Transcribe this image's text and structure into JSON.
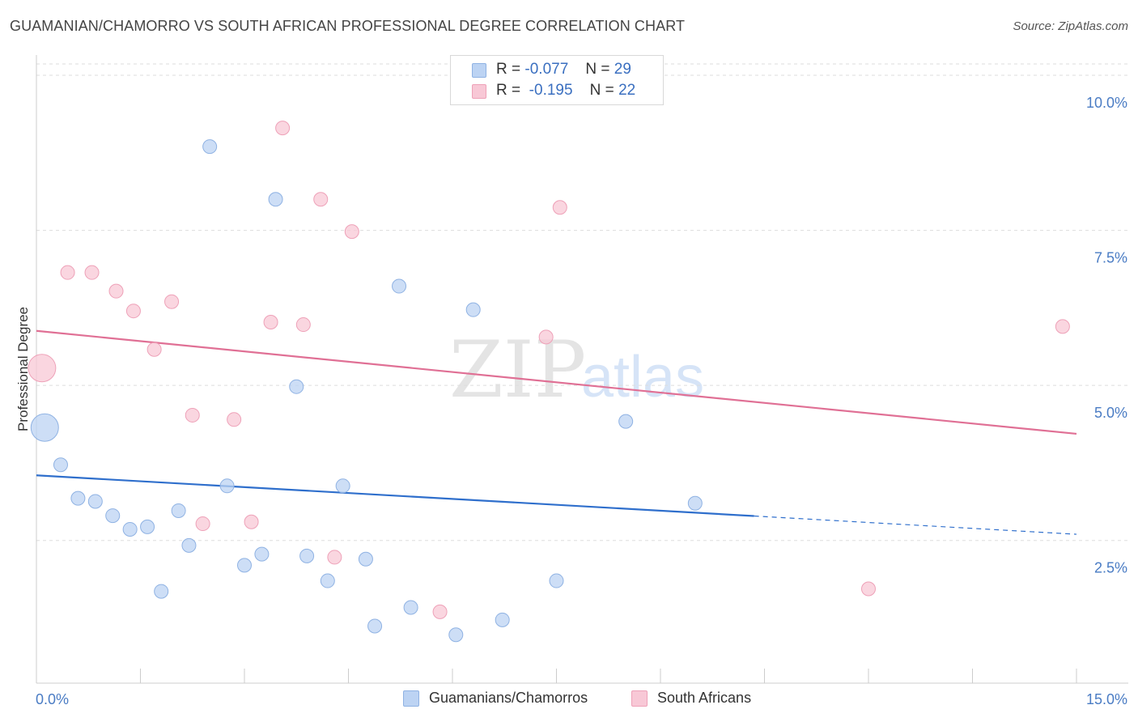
{
  "header": {
    "title": "GUAMANIAN/CHAMORRO VS SOUTH AFRICAN PROFESSIONAL DEGREE CORRELATION CHART",
    "source": "Source: ZipAtlas.com"
  },
  "watermark": {
    "zip": "ZIP",
    "atlas": "atlas"
  },
  "legend": {
    "rows": [
      {
        "r_label": "R =",
        "r_value": "-0.077",
        "n_label": "N =",
        "n_value": "29"
      },
      {
        "r_label": "R =",
        "r_value": "-0.195",
        "n_label": "N =",
        "n_value": "22"
      }
    ]
  },
  "colors": {
    "blue_fill": "#bcd3f3",
    "blue_stroke": "#8fb2e3",
    "blue_line": "#2f6fcc",
    "pink_fill": "#f8c8d6",
    "pink_stroke": "#eea1b8",
    "pink_line": "#e07095",
    "grid": "#dddddd",
    "tick_text": "#4a7cc4"
  },
  "chart_data": {
    "type": "scatter",
    "title": "GUAMANIAN/CHAMORRO VS SOUTH AFRICAN PROFESSIONAL DEGREE CORRELATION CHART",
    "xlabel": "",
    "ylabel": "Professional Degree",
    "xlim": [
      0,
      15
    ],
    "ylim": [
      0.2,
      10.3
    ],
    "x_tick_labels": [
      "0.0%",
      "15.0%"
    ],
    "y_ticks": [
      2.5,
      5.0,
      7.5,
      10.0
    ],
    "y_tick_labels": [
      "2.5%",
      "5.0%",
      "7.5%",
      "10.0%"
    ],
    "legend_position": "bottom",
    "series": [
      {
        "name": "Guamanians/Chamorros",
        "r": -0.077,
        "n": 29,
        "trend": {
          "x0": 0,
          "y0": 3.55,
          "x1": 15,
          "y1": 2.6,
          "solid_until": 10.35
        },
        "points": [
          {
            "x": 0.12,
            "y": 4.32,
            "size": "large"
          },
          {
            "x": 0.35,
            "y": 3.72
          },
          {
            "x": 0.6,
            "y": 3.18
          },
          {
            "x": 0.85,
            "y": 3.13
          },
          {
            "x": 1.1,
            "y": 2.9
          },
          {
            "x": 1.35,
            "y": 2.68
          },
          {
            "x": 1.6,
            "y": 2.72
          },
          {
            "x": 1.8,
            "y": 1.68
          },
          {
            "x": 2.05,
            "y": 2.98
          },
          {
            "x": 2.2,
            "y": 2.42
          },
          {
            "x": 2.5,
            "y": 8.85
          },
          {
            "x": 2.75,
            "y": 3.38
          },
          {
            "x": 3.0,
            "y": 2.1
          },
          {
            "x": 3.25,
            "y": 2.28
          },
          {
            "x": 3.45,
            "y": 8.0
          },
          {
            "x": 3.75,
            "y": 4.98
          },
          {
            "x": 3.9,
            "y": 2.25
          },
          {
            "x": 4.2,
            "y": 1.85
          },
          {
            "x": 4.42,
            "y": 3.38
          },
          {
            "x": 4.75,
            "y": 2.2
          },
          {
            "x": 4.88,
            "y": 1.12
          },
          {
            "x": 5.23,
            "y": 6.6
          },
          {
            "x": 5.4,
            "y": 1.42
          },
          {
            "x": 6.05,
            "y": 0.98
          },
          {
            "x": 6.3,
            "y": 6.22
          },
          {
            "x": 6.72,
            "y": 1.22
          },
          {
            "x": 7.5,
            "y": 1.85
          },
          {
            "x": 8.5,
            "y": 4.42
          },
          {
            "x": 9.5,
            "y": 3.1
          }
        ]
      },
      {
        "name": "South Africans",
        "r": -0.195,
        "n": 22,
        "trend": {
          "x0": 0,
          "y0": 5.88,
          "x1": 15,
          "y1": 4.22
        },
        "points": [
          {
            "x": 0.08,
            "y": 5.28,
            "size": "large"
          },
          {
            "x": 0.45,
            "y": 6.82
          },
          {
            "x": 0.8,
            "y": 6.82
          },
          {
            "x": 1.15,
            "y": 6.52
          },
          {
            "x": 1.4,
            "y": 6.2
          },
          {
            "x": 1.7,
            "y": 5.58
          },
          {
            "x": 1.95,
            "y": 6.35
          },
          {
            "x": 2.25,
            "y": 4.52
          },
          {
            "x": 2.4,
            "y": 2.77
          },
          {
            "x": 2.85,
            "y": 4.45
          },
          {
            "x": 3.1,
            "y": 2.8
          },
          {
            "x": 3.38,
            "y": 6.02
          },
          {
            "x": 3.55,
            "y": 9.15
          },
          {
            "x": 3.85,
            "y": 5.98
          },
          {
            "x": 4.1,
            "y": 8.0
          },
          {
            "x": 4.3,
            "y": 2.23
          },
          {
            "x": 4.55,
            "y": 7.48
          },
          {
            "x": 5.82,
            "y": 1.35
          },
          {
            "x": 7.35,
            "y": 5.78
          },
          {
            "x": 7.55,
            "y": 7.87
          },
          {
            "x": 12.0,
            "y": 1.72
          },
          {
            "x": 14.8,
            "y": 5.95
          }
        ]
      }
    ]
  }
}
